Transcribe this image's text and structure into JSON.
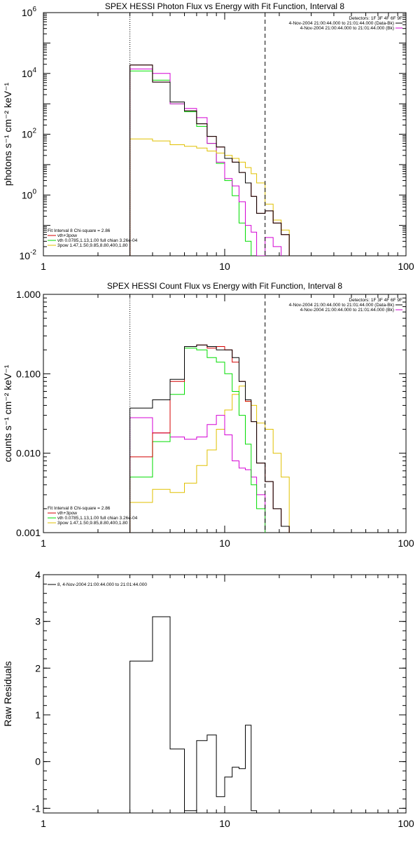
{
  "colors": {
    "total": "#000000",
    "vth": "#d40000",
    "vth_comp": "#00dd00",
    "powerlaw": "#e0c000",
    "data": "#d400d4"
  },
  "chart_data": [
    {
      "type": "line",
      "title": "SPEX HESSI Photon Flux vs Energy with Fit Function, Interval 8",
      "xlabel": "",
      "ylabel": "photons s⁻¹ cm⁻² keV⁻¹",
      "x_scale": "log",
      "y_scale": "log",
      "xlim": [
        1,
        100
      ],
      "ylim": [
        0.01,
        1000000
      ],
      "x_ticks": [
        {
          "v": 1,
          "label": "1"
        },
        {
          "v": 10,
          "label": "10"
        },
        {
          "v": 100,
          "label": "100"
        }
      ],
      "y_ticks": [
        {
          "v": 0.01,
          "label": "10",
          "exp": "-2"
        },
        {
          "v": 1,
          "label": "10",
          "exp": "0"
        },
        {
          "v": 100,
          "label": "10",
          "exp": "2"
        },
        {
          "v": 10000,
          "label": "10",
          "exp": "4"
        },
        {
          "v": 1000000,
          "label": "10",
          "exp": "6"
        }
      ],
      "edges": [
        3,
        4,
        5,
        6,
        7,
        8,
        9,
        10,
        11,
        12,
        13,
        14,
        15,
        16.7,
        18.5,
        20.5,
        22.7
      ],
      "series": [
        {
          "key": "vth_comp",
          "values": [
            12000,
            6000,
            1000,
            550,
            180,
            50,
            11,
            3.0,
            0.95,
            0.12,
            0.03,
            0.007,
            0.001,
            null,
            null,
            null
          ]
        },
        {
          "key": "data",
          "values": [
            14000,
            10000,
            1000,
            700,
            350,
            50,
            12,
            3.5,
            2.0,
            0.6,
            0.1,
            0.06,
            0.01,
            0.04,
            0.02,
            null
          ]
        },
        {
          "key": "powerlaw",
          "values": [
            70,
            60,
            45,
            40,
            35,
            28,
            24,
            20,
            16,
            12,
            8.0,
            5.0,
            2.5,
            0.5,
            0.15,
            0.07
          ]
        },
        {
          "key": "vth",
          "values": [
            19000,
            5200,
            1150,
            590,
            220,
            85,
            38,
            16,
            12,
            5.5,
            2.5,
            0.9,
            0.25,
            0.3,
            0.12,
            0.05
          ]
        },
        {
          "key": "total",
          "values": [
            19000,
            5200,
            1150,
            590,
            220,
            85,
            38,
            16,
            12,
            5.5,
            2.5,
            0.9,
            0.25,
            0.3,
            0.12,
            0.05
          ]
        }
      ],
      "vlines": [
        {
          "x": 3.0,
          "style": "dotted"
        },
        {
          "x": 16.7,
          "style": "dashed"
        }
      ],
      "legend_right": [
        "Detectors: 1F 3F 4F 6F 9F",
        "4-Nov-2004 21:00:44.000 to 21:01:44.000 (Data-Bk)",
        "4-Nov-2004 21:00:44.000 to 21:01:44.000 (Bk)"
      ],
      "legend_right_colors": [
        "",
        "total",
        "data"
      ],
      "legend_left": [
        "Fit Interval 8   Chi-square = 2.86",
        "vth+3pow",
        "vth 0.0785,1.13,1.00  full chian 3.26e-04",
        "3pow 1.47,1.50,9.85,8.80,400,1.80"
      ],
      "legend_left_colors": [
        "",
        "vth",
        "vth_comp",
        "powerlaw"
      ]
    },
    {
      "type": "line",
      "title": "SPEX HESSI Count Flux vs Energy with Fit Function, Interval 8",
      "xlabel": "",
      "ylabel": "counts s⁻¹ cm⁻² keV⁻¹",
      "x_scale": "log",
      "y_scale": "log",
      "xlim": [
        1,
        100
      ],
      "ylim": [
        0.001,
        1.0
      ],
      "x_ticks": [
        {
          "v": 1,
          "label": "1"
        },
        {
          "v": 10,
          "label": "10"
        },
        {
          "v": 100,
          "label": "100"
        }
      ],
      "y_ticks": [
        {
          "v": 0.001,
          "label": "0.001"
        },
        {
          "v": 0.01,
          "label": "0.010"
        },
        {
          "v": 0.1,
          "label": "0.100"
        },
        {
          "v": 1,
          "label": "1.000"
        }
      ],
      "edges": [
        3,
        4,
        5,
        6,
        7,
        8,
        9,
        10,
        11,
        12,
        13,
        14,
        15,
        16.7,
        18.5,
        20.5,
        22.7
      ],
      "series": [
        {
          "key": "powerlaw",
          "values": [
            0.0024,
            0.0035,
            0.0032,
            0.0042,
            0.007,
            0.011,
            0.02,
            0.035,
            0.055,
            0.07,
            0.045,
            0.04,
            0.024,
            0.02,
            0.01,
            0.005
          ]
        },
        {
          "key": "data",
          "values": [
            0.028,
            0.018,
            0.016,
            0.015,
            0.016,
            0.023,
            0.03,
            0.017,
            0.008,
            0.0065,
            0.0062,
            0.005,
            0.003,
            null,
            null,
            null
          ]
        },
        {
          "key": "vth_comp",
          "values": [
            0.005,
            0.014,
            0.055,
            0.21,
            0.2,
            0.16,
            0.14,
            0.1,
            0.06,
            0.03,
            0.013,
            0.004,
            0.002,
            null,
            null,
            null
          ]
        },
        {
          "key": "vth",
          "values": [
            0.009,
            0.018,
            0.08,
            0.22,
            0.23,
            0.21,
            0.22,
            0.2,
            0.14,
            0.08,
            0.045,
            0.025,
            0.0075,
            0.0044,
            0.002,
            0.0012
          ]
        },
        {
          "key": "total",
          "values": [
            0.037,
            0.047,
            0.085,
            0.22,
            0.23,
            0.22,
            0.2,
            0.2,
            0.16,
            0.08,
            0.047,
            0.025,
            0.0075,
            0.0044,
            0.002,
            0.0012
          ]
        }
      ],
      "vlines": [
        {
          "x": 3.0,
          "style": "dotted"
        },
        {
          "x": 16.7,
          "style": "dashed"
        }
      ],
      "legend_right": [
        "Detectors: 1F 3F 4F 6F 9F",
        "4-Nov-2004 21:00:44.000 to 21:01:44.000 (Data-Bk)",
        "4-Nov-2004 21:00:44.000 to 21:01:44.000 (Bk)"
      ],
      "legend_right_colors": [
        "",
        "total",
        "data"
      ],
      "legend_left": [
        "Fit Interval 8   Chi-square = 2.86",
        "vth+3pow",
        "vth 0.0785,1.13,1.00  full chian 3.26e-04",
        "3pow 1.47,1.50,9.85,8.80,400,1.80"
      ],
      "legend_left_colors": [
        "",
        "vth",
        "vth_comp",
        "powerlaw"
      ]
    },
    {
      "type": "line",
      "title": "",
      "xlabel": "",
      "ylabel": "Raw Residuals",
      "x_scale": "log",
      "y_scale": "linear",
      "xlim": [
        1,
        100
      ],
      "ylim": [
        -1.1,
        4
      ],
      "x_ticks": [
        {
          "v": 1,
          "label": "1"
        },
        {
          "v": 10,
          "label": "10"
        },
        {
          "v": 100,
          "label": "100"
        }
      ],
      "y_ticks": [
        {
          "v": -1,
          "label": "-1"
        },
        {
          "v": 0,
          "label": "0"
        },
        {
          "v": 1,
          "label": "1"
        },
        {
          "v": 2,
          "label": "2"
        },
        {
          "v": 3,
          "label": "3"
        },
        {
          "v": 4,
          "label": "4"
        }
      ],
      "edges": [
        3,
        4,
        5,
        6,
        7,
        8,
        9,
        10,
        11,
        12,
        13,
        14,
        15
      ],
      "series": [
        {
          "key": "total",
          "values": [
            2.15,
            3.1,
            0.27,
            -1.05,
            0.45,
            0.57,
            -0.75,
            -0.33,
            -0.12,
            -0.15,
            0.78,
            -1.05
          ]
        }
      ],
      "vlines": [],
      "legend_left": [
        "8,  4-Nov-2004 21:00:44.000 to 21:01:44.000"
      ],
      "legend_left_colors": [
        "total"
      ]
    }
  ]
}
